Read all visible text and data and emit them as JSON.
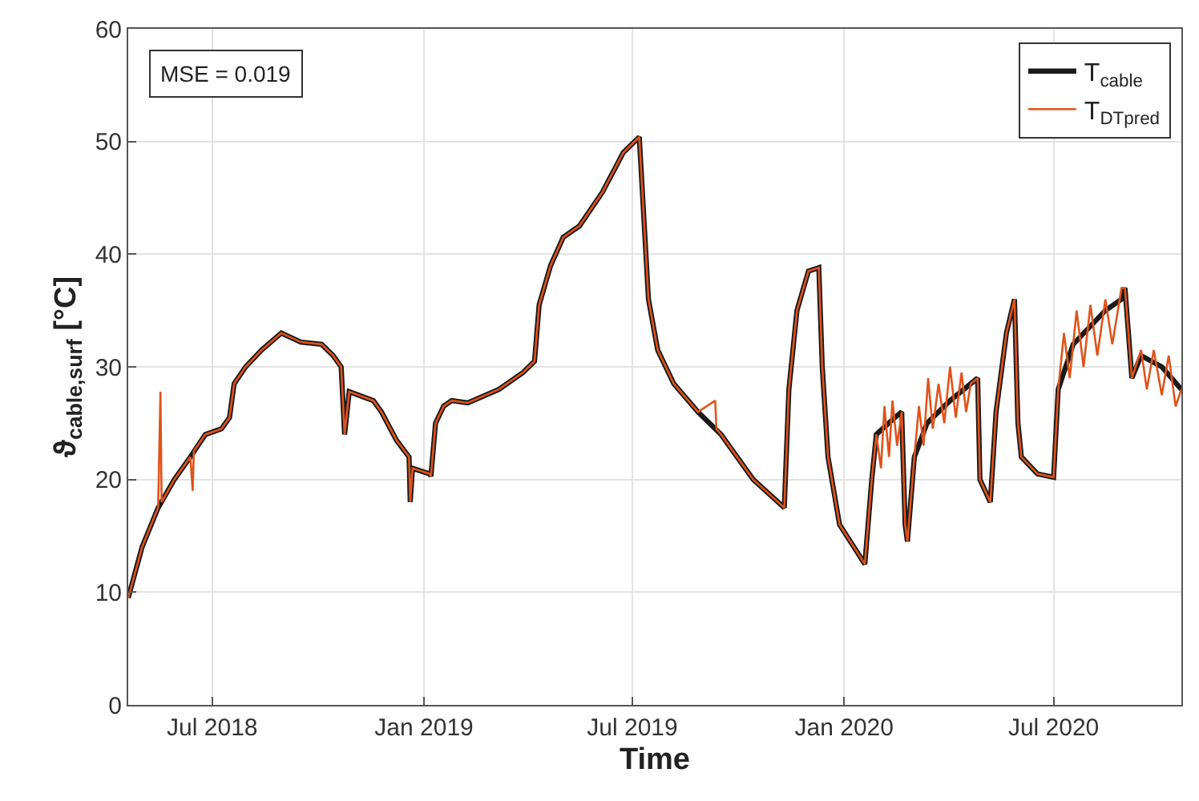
{
  "chart_data": {
    "type": "line",
    "xlabel": "Time",
    "ylabel": "ϑ$_{cable,surf}$ [°C]",
    "xlim": [
      "2018-04-19",
      "2020-10-20"
    ],
    "xticks": [
      {
        "value": "2018-07-01",
        "label": "Jul 2018"
      },
      {
        "value": "2019-01-01",
        "label": "Jan 2019"
      },
      {
        "value": "2019-07-01",
        "label": "Jul 2019"
      },
      {
        "value": "2020-01-01",
        "label": "Jan 2020"
      },
      {
        "value": "2020-07-01",
        "label": "Jul 2020"
      }
    ],
    "ylim": [
      0,
      60
    ],
    "yticks": [
      0,
      10,
      20,
      30,
      40,
      50,
      60
    ],
    "grid": true,
    "legend": "top right",
    "line_style": "solid",
    "marker": "none",
    "annotations": [
      "MSE = 0.019"
    ],
    "series": [
      {
        "name": "T$_{cable}$",
        "color": "#1a1a1a",
        "x": [
          "2018-04-19",
          "2018-05-01",
          "2018-05-15",
          "2018-05-29",
          "2018-06-12",
          "2018-06-25",
          "2018-07-09",
          "2018-07-16",
          "2018-07-20",
          "2018-07-30",
          "2018-08-13",
          "2018-08-30",
          "2018-09-16",
          "2018-10-04",
          "2018-10-14",
          "2018-10-21",
          "2018-10-24",
          "2018-10-28",
          "2018-11-18",
          "2018-11-25",
          "2018-12-08",
          "2018-12-19",
          "2018-12-20",
          "2018-12-22",
          "2019-01-06",
          "2019-01-07",
          "2019-01-11",
          "2019-01-18",
          "2019-01-25",
          "2019-02-08",
          "2019-03-07",
          "2019-03-28",
          "2019-04-07",
          "2019-04-11",
          "2019-04-21",
          "2019-05-02",
          "2019-05-16",
          "2019-06-05",
          "2019-06-23",
          "2019-07-07",
          "2019-07-10",
          "2019-07-15",
          "2019-07-23",
          "2019-08-06",
          "2019-08-27",
          "2019-09-16",
          "2019-10-14",
          "2019-11-10",
          "2019-11-14",
          "2019-11-21",
          "2019-12-01",
          "2019-12-10",
          "2019-12-13",
          "2019-12-18",
          "2019-12-28",
          "2020-01-19",
          "2020-01-25",
          "2020-01-29",
          "2020-02-14",
          "2020-02-20",
          "2020-02-23",
          "2020-02-25",
          "2020-03-02",
          "2020-03-13",
          "2020-04-02",
          "2020-04-20",
          "2020-04-26",
          "2020-04-28",
          "2020-05-07",
          "2020-05-12",
          "2020-05-21",
          "2020-05-28",
          "2020-05-31",
          "2020-06-03",
          "2020-06-17",
          "2020-07-01",
          "2020-07-05",
          "2020-07-18",
          "2020-08-15",
          "2020-08-29",
          "2020-09-01",
          "2020-09-07",
          "2020-09-15",
          "2020-10-03",
          "2020-10-20"
        ],
        "values": [
          9.5,
          14,
          17.5,
          20,
          22,
          24,
          24.5,
          25.5,
          28.5,
          30,
          31.5,
          33,
          32.2,
          32,
          31,
          30,
          24,
          27.8,
          27,
          26,
          23.5,
          22,
          18,
          21,
          20.5,
          20.3,
          25,
          26.5,
          27,
          26.8,
          28,
          29.5,
          30.5,
          35.5,
          39,
          41.5,
          42.5,
          45.5,
          49,
          50.4,
          45,
          36,
          31.5,
          28.5,
          26,
          24,
          20,
          17.5,
          28,
          35,
          38.5,
          38.8,
          30,
          22,
          16,
          12.5,
          20,
          24,
          25.5,
          26,
          16,
          14.5,
          22,
          25,
          27,
          28.5,
          29,
          20,
          18,
          26,
          33,
          36,
          25,
          22,
          20.5,
          20.2,
          28,
          32,
          35,
          36,
          37,
          29,
          31,
          30,
          28
        ]
      },
      {
        "name": "T$_{DT}$$_{pred}$",
        "color": "#e0531a",
        "x": [
          "2018-04-19",
          "2018-05-01",
          "2018-05-15",
          "2018-05-17",
          "2018-05-18",
          "2018-05-29",
          "2018-06-12",
          "2018-06-14",
          "2018-06-15",
          "2018-06-25",
          "2018-07-09",
          "2018-07-16",
          "2018-07-20",
          "2018-07-30",
          "2018-08-13",
          "2018-08-30",
          "2018-09-16",
          "2018-10-04",
          "2018-10-14",
          "2018-10-21",
          "2018-10-24",
          "2018-10-28",
          "2018-11-18",
          "2018-11-25",
          "2018-12-08",
          "2018-12-19",
          "2018-12-20",
          "2018-12-22",
          "2019-01-06",
          "2019-01-07",
          "2019-01-11",
          "2019-01-18",
          "2019-01-25",
          "2019-02-08",
          "2019-03-07",
          "2019-03-28",
          "2019-04-07",
          "2019-04-11",
          "2019-04-21",
          "2019-05-02",
          "2019-05-16",
          "2019-06-05",
          "2019-06-23",
          "2019-07-07",
          "2019-07-10",
          "2019-07-15",
          "2019-07-23",
          "2019-08-06",
          "2019-08-27",
          "2019-09-11",
          "2019-09-12",
          "2019-09-16",
          "2019-10-14",
          "2019-11-10",
          "2019-11-14",
          "2019-11-21",
          "2019-12-01",
          "2019-12-10",
          "2019-12-13",
          "2019-12-18",
          "2019-12-28",
          "2020-01-19",
          "2020-01-25",
          "2020-01-29",
          "2020-02-02",
          "2020-02-05",
          "2020-02-09",
          "2020-02-12",
          "2020-02-16",
          "2020-02-20",
          "2020-02-23",
          "2020-02-25",
          "2020-03-02",
          "2020-03-06",
          "2020-03-10",
          "2020-03-14",
          "2020-03-18",
          "2020-03-23",
          "2020-03-28",
          "2020-04-02",
          "2020-04-07",
          "2020-04-12",
          "2020-04-16",
          "2020-04-20",
          "2020-04-26",
          "2020-04-28",
          "2020-05-07",
          "2020-05-12",
          "2020-05-21",
          "2020-05-28",
          "2020-05-31",
          "2020-06-03",
          "2020-06-17",
          "2020-07-01",
          "2020-07-05",
          "2020-07-10",
          "2020-07-15",
          "2020-07-21",
          "2020-07-27",
          "2020-08-02",
          "2020-08-08",
          "2020-08-15",
          "2020-08-21",
          "2020-08-29",
          "2020-09-01",
          "2020-09-07",
          "2020-09-15",
          "2020-09-20",
          "2020-09-26",
          "2020-10-03",
          "2020-10-09",
          "2020-10-15",
          "2020-10-20"
        ],
        "values": [
          9.5,
          14,
          17.5,
          27.8,
          18,
          20,
          22,
          19,
          22.5,
          24,
          24.5,
          25.5,
          28.5,
          30,
          31.5,
          33,
          32.2,
          32,
          31,
          30,
          24,
          27.8,
          27,
          26,
          23.5,
          22,
          18,
          21,
          20.5,
          20.3,
          25,
          26.5,
          27,
          26.8,
          28,
          29.5,
          30.5,
          35.5,
          39,
          41.5,
          42.5,
          45.5,
          49,
          50.4,
          45,
          36,
          31.5,
          28.5,
          26,
          27,
          24.5,
          24,
          20,
          17.5,
          28,
          35,
          38.5,
          38.8,
          30,
          22,
          16,
          12.5,
          20,
          24,
          21,
          26.5,
          22,
          27,
          23,
          26,
          16,
          14.5,
          22,
          26.5,
          23,
          29,
          24.5,
          28.5,
          25,
          30,
          25.5,
          29.5,
          26,
          28.5,
          29,
          20,
          18,
          26,
          33,
          36,
          25,
          22,
          20.5,
          20.2,
          28,
          33,
          29,
          35,
          30,
          35.5,
          31,
          36,
          32,
          37,
          37,
          29,
          31.5,
          28,
          31.5,
          27.5,
          31,
          26.5,
          28
        ]
      }
    ]
  }
}
